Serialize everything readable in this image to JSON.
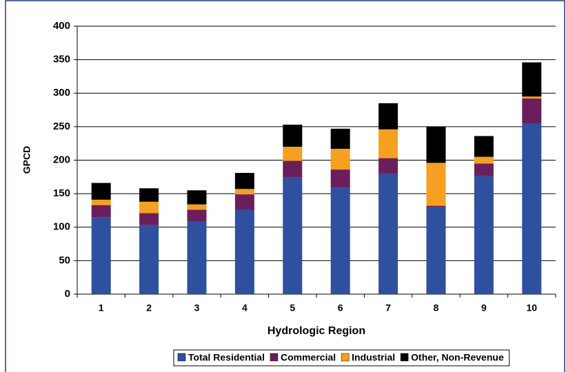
{
  "chart_data": {
    "type": "stacked_bar",
    "x_label": "Hydrologic Region",
    "y_label": "GPCD",
    "categories": [
      "1",
      "2",
      "3",
      "4",
      "5",
      "6",
      "7",
      "8",
      "9",
      "10"
    ],
    "series": [
      {
        "name": "Total Residential",
        "color": "#2f4f9f",
        "values": [
          115,
          103,
          109,
          126,
          174,
          159,
          180,
          130,
          176,
          255
        ]
      },
      {
        "name": "Commercial",
        "color": "#6a1f5c",
        "values": [
          18,
          18,
          17,
          23,
          25,
          27,
          23,
          2,
          19,
          37
        ]
      },
      {
        "name": "Industrial",
        "color": "#f5a020",
        "values": [
          8,
          17,
          8,
          8,
          21,
          31,
          43,
          64,
          10,
          3
        ]
      },
      {
        "name": "Other, Non-Revenue",
        "color": "#000000",
        "values": [
          25,
          20,
          21,
          24,
          33,
          30,
          39,
          54,
          31,
          51
        ]
      }
    ],
    "ylim": [
      0,
      400
    ],
    "yticks": [
      0,
      50,
      100,
      150,
      200,
      250,
      300,
      350,
      400
    ],
    "grid": true
  }
}
